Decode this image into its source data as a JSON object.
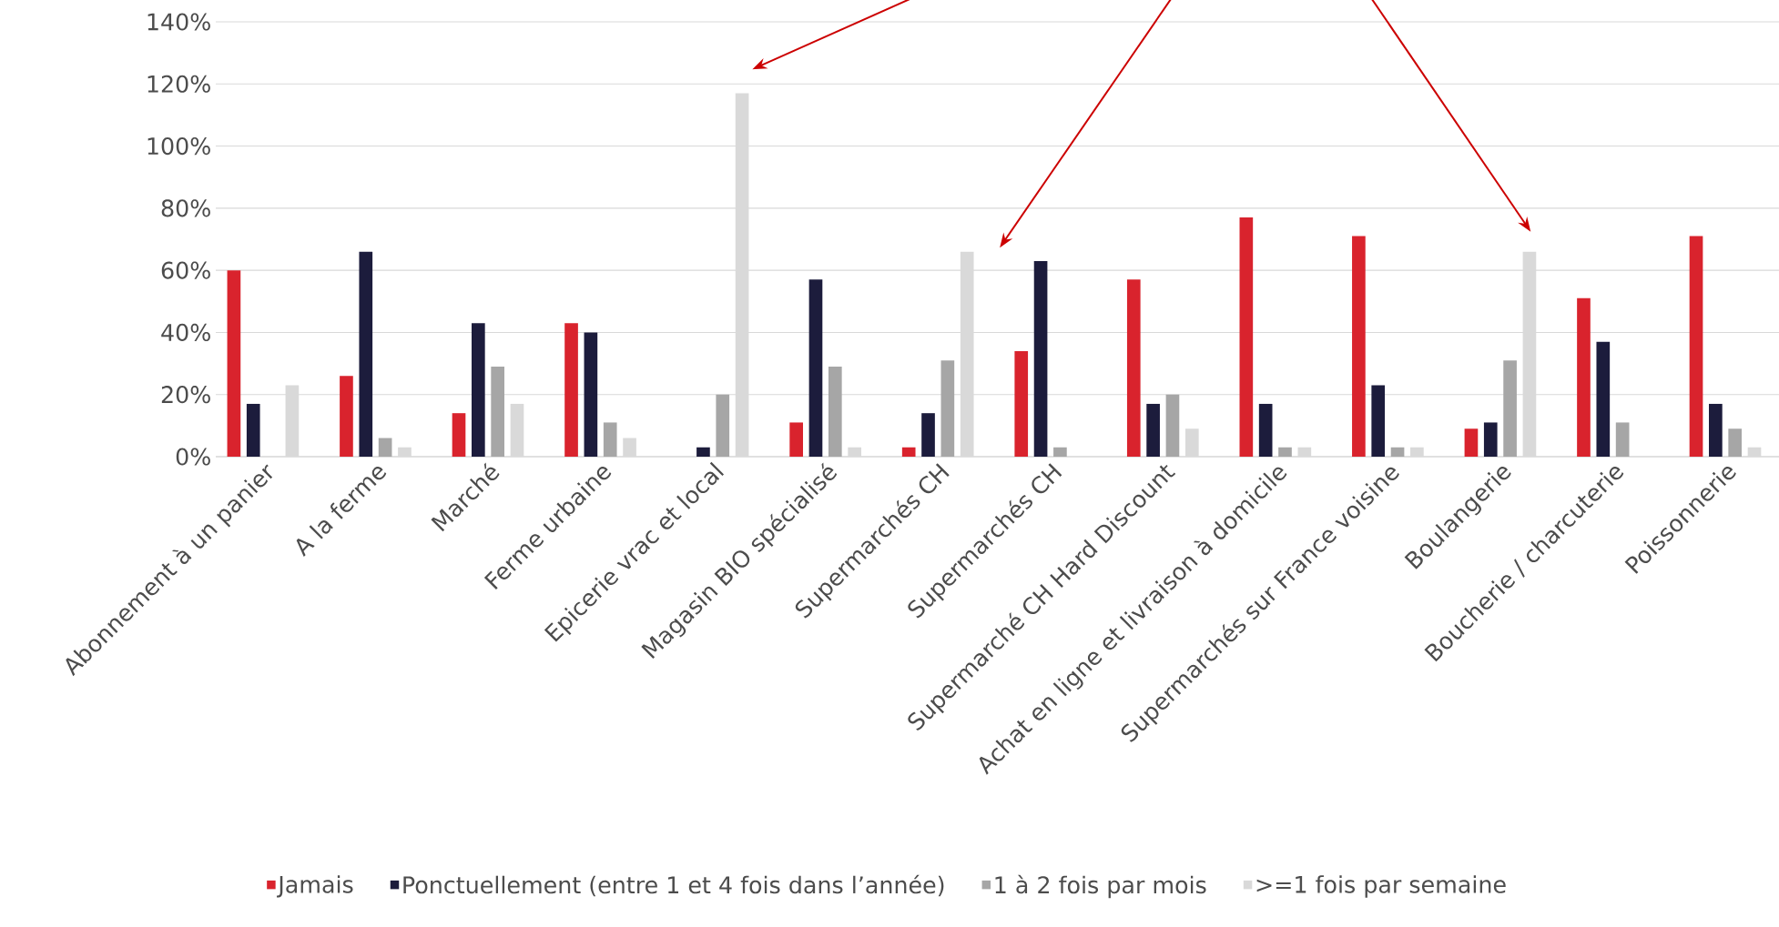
{
  "chart_data": {
    "type": "bar",
    "categories": [
      "Abonnement à un panier",
      "A la ferme",
      "Marché",
      "Ferme urbaine",
      "Epicerie vrac et local",
      "Magasin BIO spécialisé",
      "Supermarchés CH",
      "Supermarchés CH",
      "Supermarché CH Hard Discount",
      "Achat en ligne et livraison à domicile",
      "Supermarchés sur France voisine",
      "Boulangerie",
      "Boucherie / charcuterie",
      "Poissonnerie"
    ],
    "series": [
      {
        "name": "Jamais",
        "color": "#d9232d",
        "values": [
          60,
          26,
          14,
          43,
          0,
          11,
          3,
          34,
          57,
          77,
          71,
          9,
          51,
          71
        ]
      },
      {
        "name": "Ponctuellement (entre 1 et 4 fois dans l’année)",
        "color": "#1c1c3c",
        "values": [
          17,
          66,
          43,
          40,
          3,
          57,
          14,
          63,
          17,
          17,
          23,
          11,
          37,
          17
        ]
      },
      {
        "name": "1 à 2 fois par mois",
        "color": "#a6a6a6",
        "values": [
          0,
          6,
          29,
          11,
          20,
          29,
          31,
          3,
          20,
          3,
          3,
          31,
          11,
          9
        ]
      },
      {
        "name": ">=1 fois par semaine",
        "color": "#d9d9d9",
        "values": [
          23,
          3,
          17,
          6,
          117,
          3,
          66,
          0,
          9,
          3,
          3,
          66,
          0,
          3
        ]
      }
    ],
    "ylim": [
      0,
      140
    ],
    "yticks": [
      {
        "value": 0,
        "label": "0%"
      },
      {
        "value": 20,
        "label": "20%"
      },
      {
        "value": 40,
        "label": "40%"
      },
      {
        "value": 60,
        "label": "60%"
      },
      {
        "value": 80,
        "label": "80%"
      },
      {
        "value": 100,
        "label": "100%"
      },
      {
        "value": 120,
        "label": "120%"
      },
      {
        "value": 140,
        "label": "140%"
      }
    ],
    "grid": "y",
    "legend": "bottom"
  }
}
